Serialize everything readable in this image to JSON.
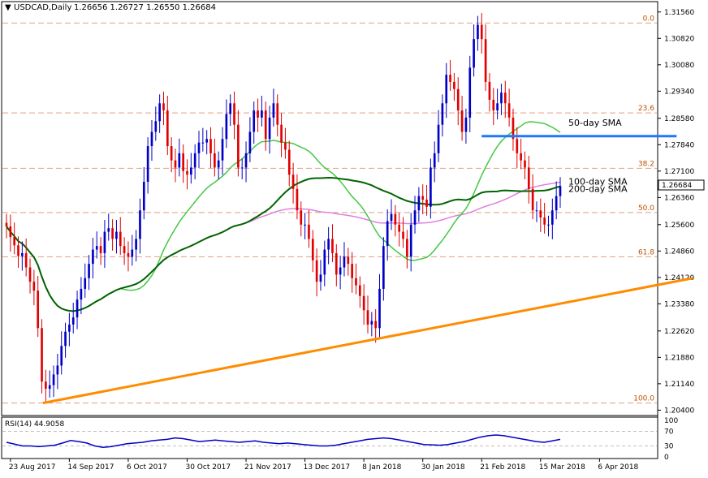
{
  "header": {
    "symbol": "USDCAD,Daily",
    "ohlc": "1.26656 1.26727 1.26550 1.26684"
  },
  "chart_data": {
    "type": "candlestick",
    "symbol": "USDCAD",
    "timeframe": "Daily",
    "ylim": [
      1.2025,
      1.3185
    ],
    "y_ticks": [
      "1.31560",
      "1.30820",
      "1.30080",
      "1.29340",
      "1.28580",
      "1.27840",
      "1.27100",
      "1.26360",
      "1.25600",
      "1.24860",
      "1.24120",
      "1.23380",
      "1.22620",
      "1.21880",
      "1.21140",
      "1.20400"
    ],
    "x_ticks": [
      "23 Aug 2017",
      "14 Sep 2017",
      "6 Oct 2017",
      "30 Oct 2017",
      "21 Nov 2017",
      "13 Dec 2017",
      "8 Jan 2018",
      "30 Jan 2018",
      "21 Feb 2018",
      "15 Mar 2018",
      "6 Apr 2018"
    ],
    "current_price": "1.26684",
    "colors": {
      "up": "#0000c8",
      "down": "#e00000",
      "sma50": "#44c844",
      "sma100": "#006400",
      "sma200": "#e080e0",
      "trend": "#ff8c00",
      "resistance": "#1e78ff",
      "fib": "#e0a080"
    },
    "fibonacci": [
      {
        "label": "0.0",
        "price": 1.3125
      },
      {
        "label": "23.6",
        "price": 1.2873
      },
      {
        "label": "38.2",
        "price": 1.2718
      },
      {
        "label": "50.0",
        "price": 1.2594
      },
      {
        "label": "61.8",
        "price": 1.247
      },
      {
        "label": "100.0",
        "price": 1.206
      }
    ],
    "annotations": [
      {
        "text": "50-day SMA",
        "color": "#44c844"
      },
      {
        "text": "100-day SMA",
        "color": "#006400"
      },
      {
        "text": "200-day SMA",
        "color": "#e080e0"
      }
    ],
    "resistance_line": {
      "price": 1.2808,
      "from": "21 Feb 2018",
      "to": "6 Apr 2018"
    },
    "trend_line": {
      "from": {
        "date": "23 Aug 2017",
        "price": 1.206
      },
      "to": {
        "date": "6 Apr 2018",
        "price": 1.241
      }
    },
    "closes": [
      1.2555,
      1.2525,
      1.2502,
      1.2472,
      1.248,
      1.244,
      1.24,
      1.2375,
      1.227,
      1.212,
      1.21,
      1.211,
      1.214,
      1.2165,
      1.222,
      1.226,
      1.228,
      1.23,
      1.235,
      1.238,
      1.241,
      1.245,
      1.249,
      1.25,
      1.248,
      1.254,
      1.255,
      1.252,
      1.254,
      1.25,
      1.248,
      1.247,
      1.249,
      1.252,
      1.26,
      1.268,
      1.278,
      1.282,
      1.285,
      1.29,
      1.288,
      1.278,
      1.274,
      1.272,
      1.276,
      1.271,
      1.27,
      1.272,
      1.276,
      1.279,
      1.279,
      1.28,
      1.276,
      1.272,
      1.274,
      1.28,
      1.287,
      1.29,
      1.284,
      1.272,
      1.272,
      1.276,
      1.282,
      1.288,
      1.286,
      1.288,
      1.28,
      1.286,
      1.29,
      1.284,
      1.279,
      1.277,
      1.27,
      1.266,
      1.26,
      1.256,
      1.256,
      1.252,
      1.246,
      1.24,
      1.242,
      1.249,
      1.252,
      1.248,
      1.242,
      1.244,
      1.247,
      1.245,
      1.241,
      1.239,
      1.236,
      1.232,
      1.228,
      1.229,
      1.227,
      1.238,
      1.25,
      1.257,
      1.259,
      1.256,
      1.254,
      1.252,
      1.247,
      1.256,
      1.26,
      1.264,
      1.263,
      1.261,
      1.272,
      1.276,
      1.284,
      1.29,
      1.298,
      1.296,
      1.294,
      1.288,
      1.282,
      1.286,
      1.3,
      1.308,
      1.312,
      1.308,
      1.296,
      1.291,
      1.288,
      1.29,
      1.293,
      1.29,
      1.286,
      1.28,
      1.276,
      1.274,
      1.272,
      1.266,
      1.26,
      1.26,
      1.258,
      1.256,
      1.256,
      1.26,
      1.264,
      1.2668
    ]
  },
  "rsi": {
    "label": "RSI(14) 44.9058",
    "levels": [
      "100",
      "70",
      "30",
      "0"
    ],
    "values": [
      40,
      35,
      30,
      30,
      28,
      30,
      32,
      38,
      45,
      42,
      38,
      30,
      26,
      28,
      32,
      36,
      38,
      40,
      44,
      46,
      48,
      52,
      50,
      46,
      42,
      44,
      46,
      44,
      42,
      40,
      42,
      44,
      40,
      38,
      36,
      38,
      36,
      34,
      32,
      30,
      30,
      32,
      36,
      40,
      44,
      48,
      50,
      52,
      50,
      46,
      42,
      38,
      34,
      33,
      32,
      34,
      38,
      42,
      48,
      54,
      58,
      60,
      58,
      54,
      50,
      46,
      42,
      40,
      44,
      48
    ]
  }
}
